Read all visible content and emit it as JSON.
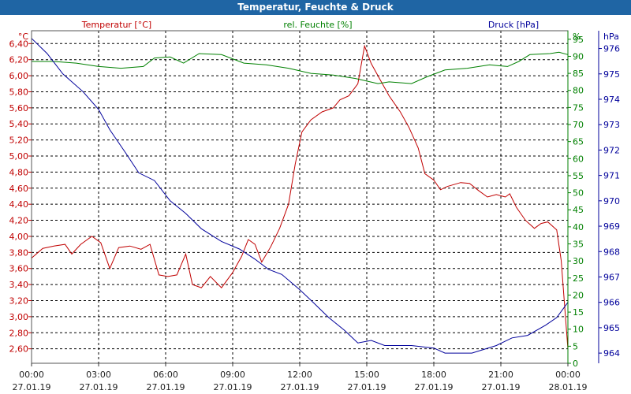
{
  "window": {
    "title": "Temperatur, Feuchte & Druck"
  },
  "chart_data": {
    "type": "line",
    "title": "Temperatur, Feuchte & Druck",
    "colors": {
      "temperature": "#c00000",
      "humidity": "#008000",
      "pressure": "#00009b",
      "grid": "#000000"
    },
    "grid": true,
    "x_ticks": [
      {
        "time": "00:00",
        "date": "27.01.19"
      },
      {
        "time": "03:00",
        "date": "27.01.19"
      },
      {
        "time": "06:00",
        "date": "27.01.19"
      },
      {
        "time": "09:00",
        "date": "27.01.19"
      },
      {
        "time": "12:00",
        "date": "27.01.19"
      },
      {
        "time": "15:00",
        "date": "27.01.19"
      },
      {
        "time": "18:00",
        "date": "27.01.19"
      },
      {
        "time": "21:00",
        "date": "27.01.19"
      },
      {
        "time": "00:00",
        "date": "28.01.19"
      }
    ],
    "x_range_hours": [
      0,
      24
    ],
    "axes": {
      "temperature": {
        "label": "Temperatur [°C]",
        "unit": "°C",
        "range": [
          2.42,
          6.56
        ],
        "ticks": [
          "2,60",
          "2,80",
          "3,00",
          "3,20",
          "3,40",
          "3,60",
          "3,80",
          "4,00",
          "4,20",
          "4,40",
          "4,60",
          "4,80",
          "5,00",
          "5,20",
          "5,40",
          "5,60",
          "5,80",
          "6,00",
          "6,20",
          "6,40"
        ]
      },
      "humidity": {
        "label": "rel. Feuchte [%]",
        "unit": "%",
        "range": [
          0,
          97.5
        ],
        "ticks": [
          "0",
          "5",
          "10",
          "15",
          "20",
          "25",
          "30",
          "35",
          "40",
          "45",
          "50",
          "55",
          "60",
          "65",
          "70",
          "75",
          "80",
          "85",
          "90",
          "95"
        ]
      },
      "pressure": {
        "label": "Druck [hPa]",
        "unit": "hPa",
        "range": [
          963.6,
          976.7
        ],
        "ticks": [
          "964",
          "965",
          "966",
          "967",
          "968",
          "969",
          "970",
          "971",
          "972",
          "973",
          "974",
          "975",
          "976"
        ]
      }
    },
    "series": [
      {
        "name": "Temperatur [°C]",
        "axis": "temperature",
        "points": [
          [
            0,
            3.73
          ],
          [
            0.5,
            3.85
          ],
          [
            1,
            3.88
          ],
          [
            1.5,
            3.9
          ],
          [
            1.8,
            3.78
          ],
          [
            2.2,
            3.9
          ],
          [
            2.7,
            4.0
          ],
          [
            3.1,
            3.92
          ],
          [
            3.5,
            3.6
          ],
          [
            3.9,
            3.86
          ],
          [
            4.4,
            3.88
          ],
          [
            4.9,
            3.84
          ],
          [
            5.3,
            3.9
          ],
          [
            5.7,
            3.52
          ],
          [
            6.1,
            3.5
          ],
          [
            6.5,
            3.52
          ],
          [
            6.9,
            3.78
          ],
          [
            7.2,
            3.4
          ],
          [
            7.6,
            3.36
          ],
          [
            8.0,
            3.5
          ],
          [
            8.5,
            3.36
          ],
          [
            9.0,
            3.55
          ],
          [
            9.4,
            3.75
          ],
          [
            9.7,
            3.96
          ],
          [
            10.0,
            3.9
          ],
          [
            10.3,
            3.68
          ],
          [
            10.7,
            3.87
          ],
          [
            11.1,
            4.1
          ],
          [
            11.5,
            4.4
          ],
          [
            11.8,
            4.9
          ],
          [
            12.1,
            5.3
          ],
          [
            12.5,
            5.45
          ],
          [
            13.0,
            5.55
          ],
          [
            13.5,
            5.6
          ],
          [
            13.8,
            5.7
          ],
          [
            14.2,
            5.75
          ],
          [
            14.6,
            5.9
          ],
          [
            14.9,
            6.37
          ],
          [
            15.2,
            6.15
          ],
          [
            15.6,
            5.95
          ],
          [
            16.0,
            5.75
          ],
          [
            16.5,
            5.55
          ],
          [
            16.9,
            5.35
          ],
          [
            17.3,
            5.1
          ],
          [
            17.6,
            4.78
          ],
          [
            18.0,
            4.7
          ],
          [
            18.3,
            4.58
          ],
          [
            18.6,
            4.62
          ],
          [
            19.2,
            4.67
          ],
          [
            19.6,
            4.66
          ],
          [
            20.0,
            4.57
          ],
          [
            20.4,
            4.49
          ],
          [
            20.8,
            4.52
          ],
          [
            21.2,
            4.49
          ],
          [
            21.4,
            4.53
          ],
          [
            21.7,
            4.36
          ],
          [
            22.1,
            4.2
          ],
          [
            22.5,
            4.1
          ],
          [
            22.8,
            4.16
          ],
          [
            23.1,
            4.18
          ],
          [
            23.5,
            4.08
          ],
          [
            23.7,
            3.7
          ],
          [
            23.9,
            2.96
          ],
          [
            24.0,
            2.6
          ]
        ]
      },
      {
        "name": "rel. Feuchte [%]",
        "axis": "humidity",
        "points": [
          [
            0,
            88.5
          ],
          [
            1,
            88.5
          ],
          [
            2,
            88
          ],
          [
            3,
            87
          ],
          [
            4,
            86.5
          ],
          [
            5,
            87
          ],
          [
            5.5,
            89.5
          ],
          [
            6.2,
            89.8
          ],
          [
            6.8,
            88
          ],
          [
            7.5,
            90.8
          ],
          [
            8.5,
            90.5
          ],
          [
            9.5,
            88
          ],
          [
            10.5,
            87.5
          ],
          [
            11.5,
            86.5
          ],
          [
            12.5,
            85
          ],
          [
            13.5,
            84.5
          ],
          [
            14.5,
            83.5
          ],
          [
            15.5,
            82
          ],
          [
            16,
            82.5
          ],
          [
            17,
            82
          ],
          [
            17.7,
            84
          ],
          [
            18.5,
            86
          ],
          [
            19.5,
            86.5
          ],
          [
            20.5,
            87.5
          ],
          [
            21.3,
            87
          ],
          [
            21.8,
            88.5
          ],
          [
            22.3,
            90.5
          ],
          [
            23.2,
            90.8
          ],
          [
            23.6,
            91.2
          ],
          [
            24,
            90.5
          ]
        ]
      },
      {
        "name": "Druck [hPa]",
        "axis": "pressure",
        "points": [
          [
            0,
            976.4
          ],
          [
            0.7,
            975.8
          ],
          [
            1.4,
            975.0
          ],
          [
            2.3,
            974.3
          ],
          [
            3.0,
            973.6
          ],
          [
            3.5,
            972.8
          ],
          [
            4.2,
            971.9
          ],
          [
            4.8,
            971.1
          ],
          [
            5.5,
            970.8
          ],
          [
            6.2,
            970.0
          ],
          [
            6.9,
            969.5
          ],
          [
            7.6,
            968.9
          ],
          [
            8.5,
            968.4
          ],
          [
            9.3,
            968.1
          ],
          [
            10.0,
            967.7
          ],
          [
            10.6,
            967.3
          ],
          [
            11.2,
            967.1
          ],
          [
            12.0,
            966.5
          ],
          [
            12.6,
            966.0
          ],
          [
            13.3,
            965.4
          ],
          [
            14.0,
            964.9
          ],
          [
            14.6,
            964.4
          ],
          [
            15.2,
            964.5
          ],
          [
            15.8,
            964.3
          ],
          [
            17.0,
            964.3
          ],
          [
            18.0,
            964.2
          ],
          [
            18.5,
            964.0
          ],
          [
            19.7,
            964.0
          ],
          [
            20.8,
            964.3
          ],
          [
            21.5,
            964.6
          ],
          [
            22.2,
            964.7
          ],
          [
            23.0,
            965.1
          ],
          [
            23.5,
            965.4
          ],
          [
            24.0,
            966.0
          ]
        ]
      }
    ]
  }
}
